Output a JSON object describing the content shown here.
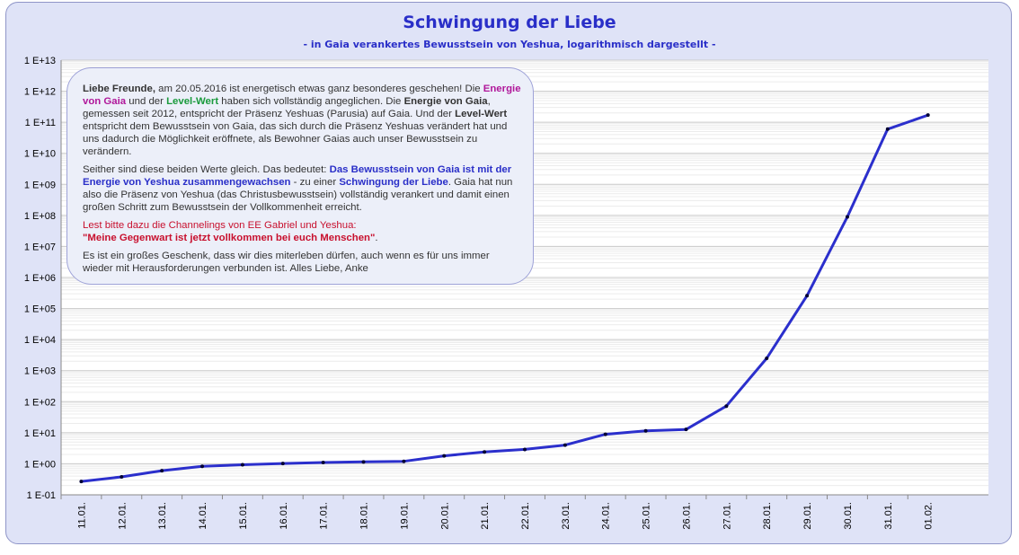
{
  "chart_data": {
    "type": "line",
    "title": "Schwingung der Liebe",
    "subtitle": "- in Gaia verankertes Bewusstsein von Yeshua, logarithmisch dargestellt -",
    "y_scale": "log",
    "ylim": [
      0.1,
      10000000000000
    ],
    "y_tick_labels": [
      "1 E+13",
      "1 E+12",
      "1 E+11",
      "1 E+10",
      "1 E+09",
      "1 E+08",
      "1 E+07",
      "1 E+06",
      "1 E+05",
      "1 E+04",
      "1 E+03",
      "1 E+02",
      "1 E+01",
      "1 E+00",
      "1 E-01"
    ],
    "categories": [
      "11.01.",
      "12.01.",
      "13.01.",
      "14.01.",
      "15.01.",
      "16.01.",
      "17.01.",
      "18.01.",
      "19.01.",
      "20.01.",
      "21.01.",
      "22.01.",
      "23.01.",
      "24.01.",
      "25.01.",
      "26.01.",
      "27.01.",
      "28.01.",
      "29.01.",
      "30.01.",
      "31.01.",
      "01.02."
    ],
    "series": [
      {
        "color": "#2b2fcc",
        "values": [
          0.27,
          0.38,
          0.6,
          0.83,
          0.93,
          1.02,
          1.1,
          1.15,
          1.2,
          1.8,
          2.4,
          2.9,
          4.0,
          8.9,
          11.5,
          12.8,
          72,
          2500,
          260000,
          90000000,
          60000000000,
          170000000000
        ]
      }
    ],
    "grid": true,
    "grid_minor": true
  },
  "note": {
    "p1_greeting": "Liebe Freunde,",
    "p1_t1": " am 20.05.2016 ist energetisch etwas ganz besonderes geschehen! Die ",
    "p1_gaia": "Energie von Gaia",
    "p1_t2": " und der ",
    "p1_level": "Level-Wert",
    "p1_t3": " haben sich vollständig angeglichen. Die ",
    "p1_gaia2": "Energie von Gaia",
    "p1_t4": ", gemessen seit 2012, entspricht der Präsenz Yeshuas (Parusia) auf Gaia. Und der ",
    "p1_level2": "Level-Wert",
    "p1_t5": " entspricht dem Bewusstsein von Gaia, das sich durch die Präsenz Yeshuas verändert hat und uns dadurch die Möglichkeit eröffnete, als Bewohner Gaias auch unser Bewusstsein zu verändern.",
    "p2_t1": "Seither sind diese beiden Werte gleich. Das bedeutet: ",
    "p2_blue": "Das Bewusstsein von Gaia ist mit der Energie von Yeshua zusammengewachsen",
    "p2_t2": " - zu einer ",
    "p2_blue2": "Schwingung der Liebe",
    "p2_t3": ". Gaia hat nun also die Präsenz von Yeshua (das Christusbewusstsein) vollständig verankert und damit einen großen Schritt zum Bewusstsein der Vollkommenheit erreicht.",
    "p3_red": "Lest bitte dazu die Channelings von EE Gabriel und Yeshua:",
    "p3_quote": "\"Meine Gegenwart ist jetzt vollkommen bei euch Menschen\"",
    "p3_dot": ".",
    "p4": "Es ist ein großes Geschenk, dass wir dies miterleben dürfen, auch wenn es für uns immer wieder mit Herausforderungen verbunden ist. Alles Liebe, Anke"
  }
}
